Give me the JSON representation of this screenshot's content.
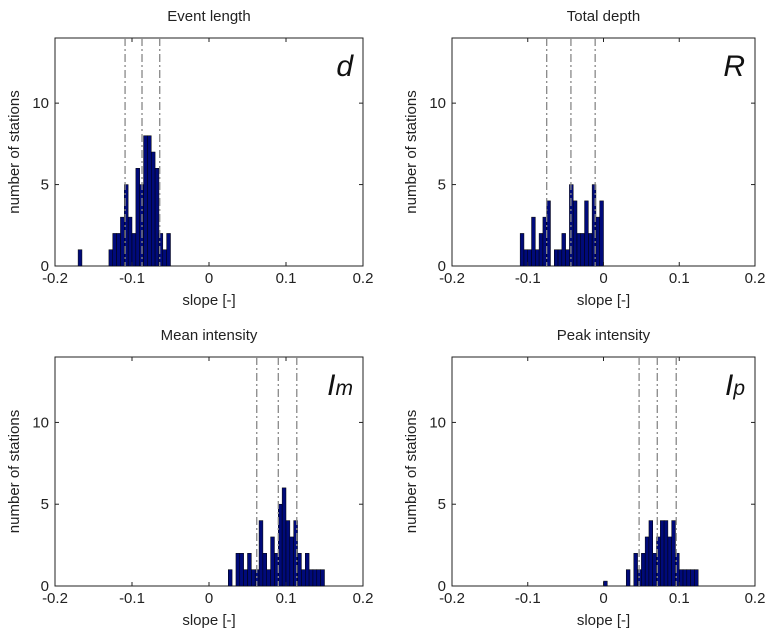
{
  "chart_data": [
    {
      "type": "bar",
      "title": "Event length",
      "corner_label": "d",
      "corner_sub": "",
      "xlabel": "slope [-]",
      "ylabel": "number of stations",
      "xlim": [
        -0.2,
        0.2
      ],
      "ylim": [
        0,
        14
      ],
      "xticks": [
        "-0.2",
        "-0.1",
        "0",
        "0.1",
        "0.2"
      ],
      "yticks": [
        "0",
        "5",
        "10"
      ],
      "bin_width": 0.005,
      "bins": [
        {
          "x": -0.1675,
          "count": 1
        },
        {
          "x": -0.1275,
          "count": 1
        },
        {
          "x": -0.1225,
          "count": 2
        },
        {
          "x": -0.1175,
          "count": 2
        },
        {
          "x": -0.1125,
          "count": 3
        },
        {
          "x": -0.1075,
          "count": 5
        },
        {
          "x": -0.1025,
          "count": 3
        },
        {
          "x": -0.0975,
          "count": 2
        },
        {
          "x": -0.0925,
          "count": 6
        },
        {
          "x": -0.0875,
          "count": 5
        },
        {
          "x": -0.0825,
          "count": 8
        },
        {
          "x": -0.0775,
          "count": 8
        },
        {
          "x": -0.0725,
          "count": 7
        },
        {
          "x": -0.0675,
          "count": 6
        },
        {
          "x": -0.0625,
          "count": 2
        },
        {
          "x": -0.0575,
          "count": 1
        },
        {
          "x": -0.0525,
          "count": 2
        }
      ],
      "reference_lines": [
        -0.109,
        -0.087,
        -0.064
      ],
      "bar_color": "#000a7a",
      "reference_line_color": "#888888",
      "grid": false
    },
    {
      "type": "bar",
      "title": "Total depth",
      "corner_label": "R",
      "corner_sub": "",
      "xlabel": "slope [-]",
      "ylabel": "number of stations",
      "xlim": [
        -0.2,
        0.2
      ],
      "ylim": [
        0,
        14
      ],
      "xticks": [
        "-0.2",
        "-0.1",
        "0",
        "0.1",
        "0.2"
      ],
      "yticks": [
        "0",
        "5",
        "10"
      ],
      "bin_width": 0.005,
      "bins": [
        {
          "x": -0.1075,
          "count": 2
        },
        {
          "x": -0.1025,
          "count": 1
        },
        {
          "x": -0.0975,
          "count": 1
        },
        {
          "x": -0.0925,
          "count": 3
        },
        {
          "x": -0.0875,
          "count": 1
        },
        {
          "x": -0.0825,
          "count": 2
        },
        {
          "x": -0.0775,
          "count": 3
        },
        {
          "x": -0.0725,
          "count": 4
        },
        {
          "x": -0.0625,
          "count": 1
        },
        {
          "x": -0.0575,
          "count": 1
        },
        {
          "x": -0.0525,
          "count": 2
        },
        {
          "x": -0.0475,
          "count": 1
        },
        {
          "x": -0.0425,
          "count": 5
        },
        {
          "x": -0.0375,
          "count": 4
        },
        {
          "x": -0.0325,
          "count": 2
        },
        {
          "x": -0.0275,
          "count": 2
        },
        {
          "x": -0.0225,
          "count": 4
        },
        {
          "x": -0.0175,
          "count": 2
        },
        {
          "x": -0.0125,
          "count": 5
        },
        {
          "x": -0.0075,
          "count": 3
        },
        {
          "x": -0.0025,
          "count": 4
        }
      ],
      "reference_lines": [
        -0.075,
        -0.043,
        -0.011
      ],
      "bar_color": "#000a7a",
      "reference_line_color": "#888888",
      "grid": false
    },
    {
      "type": "bar",
      "title": "Mean intensity",
      "corner_label": "I",
      "corner_sub": "m",
      "xlabel": "slope [-]",
      "ylabel": "number of stations",
      "xlim": [
        -0.2,
        0.2
      ],
      "ylim": [
        0,
        14
      ],
      "xticks": [
        "-0.2",
        "-0.1",
        "0",
        "0.1",
        "0.2"
      ],
      "yticks": [
        "0",
        "5",
        "10"
      ],
      "bin_width": 0.005,
      "bins": [
        {
          "x": 0.0275,
          "count": 1
        },
        {
          "x": 0.0375,
          "count": 2
        },
        {
          "x": 0.0425,
          "count": 2
        },
        {
          "x": 0.0475,
          "count": 1
        },
        {
          "x": 0.0525,
          "count": 2
        },
        {
          "x": 0.0575,
          "count": 1
        },
        {
          "x": 0.0625,
          "count": 1
        },
        {
          "x": 0.0675,
          "count": 4
        },
        {
          "x": 0.0725,
          "count": 2
        },
        {
          "x": 0.0775,
          "count": 1
        },
        {
          "x": 0.0825,
          "count": 3
        },
        {
          "x": 0.0875,
          "count": 2
        },
        {
          "x": 0.0925,
          "count": 5
        },
        {
          "x": 0.0975,
          "count": 6
        },
        {
          "x": 0.1025,
          "count": 4
        },
        {
          "x": 0.1075,
          "count": 3
        },
        {
          "x": 0.1125,
          "count": 4
        },
        {
          "x": 0.1175,
          "count": 2
        },
        {
          "x": 0.1225,
          "count": 1
        },
        {
          "x": 0.1275,
          "count": 2
        },
        {
          "x": 0.1325,
          "count": 1
        },
        {
          "x": 0.1375,
          "count": 1
        },
        {
          "x": 0.1425,
          "count": 1
        },
        {
          "x": 0.1475,
          "count": 1
        }
      ],
      "reference_lines": [
        0.062,
        0.09,
        0.114
      ],
      "bar_color": "#000a7a",
      "reference_line_color": "#888888",
      "grid": false
    },
    {
      "type": "bar",
      "title": "Peak intensity",
      "corner_label": "I",
      "corner_sub": "p",
      "xlabel": "slope [-]",
      "ylabel": "number of stations",
      "xlim": [
        -0.2,
        0.2
      ],
      "ylim": [
        0,
        14
      ],
      "xticks": [
        "-0.2",
        "-0.1",
        "0",
        "0.1",
        "0.2"
      ],
      "yticks": [
        "0",
        "5",
        "10"
      ],
      "bin_width": 0.005,
      "bins": [
        {
          "x": 0.0025,
          "count": 0.3
        },
        {
          "x": 0.0325,
          "count": 1
        },
        {
          "x": 0.0425,
          "count": 2
        },
        {
          "x": 0.0475,
          "count": 1
        },
        {
          "x": 0.0525,
          "count": 2
        },
        {
          "x": 0.0575,
          "count": 3
        },
        {
          "x": 0.0625,
          "count": 4
        },
        {
          "x": 0.0675,
          "count": 2
        },
        {
          "x": 0.0725,
          "count": 3
        },
        {
          "x": 0.0775,
          "count": 4
        },
        {
          "x": 0.0825,
          "count": 4
        },
        {
          "x": 0.0875,
          "count": 3
        },
        {
          "x": 0.0925,
          "count": 4
        },
        {
          "x": 0.0975,
          "count": 2
        },
        {
          "x": 0.1025,
          "count": 1
        },
        {
          "x": 0.1075,
          "count": 1
        },
        {
          "x": 0.1125,
          "count": 1
        },
        {
          "x": 0.1175,
          "count": 1
        },
        {
          "x": 0.1225,
          "count": 1
        }
      ],
      "reference_lines": [
        0.047,
        0.071,
        0.096
      ],
      "bar_color": "#000a7a",
      "reference_line_color": "#888888",
      "grid": false
    }
  ]
}
